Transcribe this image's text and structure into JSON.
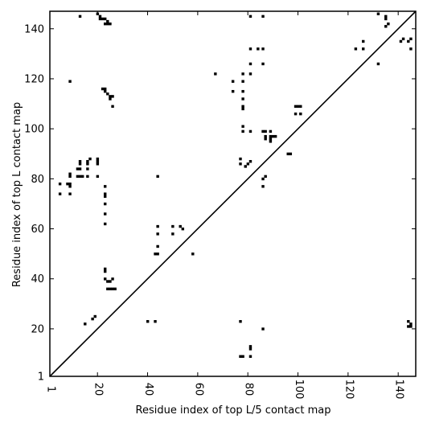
{
  "chart_data": {
    "type": "scatter",
    "title": "",
    "xlabel": "Residue index of top L/5 contact map",
    "ylabel": "Residue index of top L contact map",
    "xlim": [
      1,
      147
    ],
    "ylim": [
      1,
      147
    ],
    "xticks": [
      1,
      20,
      40,
      60,
      80,
      100,
      120,
      140
    ],
    "yticks": [
      1,
      20,
      40,
      60,
      80,
      100,
      120,
      140
    ],
    "xtick_labels": [
      "1",
      "20",
      "40",
      "60",
      "80",
      "100",
      "120",
      "140"
    ],
    "ytick_labels": [
      "1",
      "20",
      "40",
      "60",
      "80",
      "100",
      "120",
      "140"
    ],
    "diagonal": true,
    "grid": false,
    "marker_color": "#000000",
    "points": [
      [
        20,
        146
      ],
      [
        21,
        145
      ],
      [
        21,
        144
      ],
      [
        22,
        144
      ],
      [
        23,
        144
      ],
      [
        24,
        143
      ],
      [
        23,
        142
      ],
      [
        24,
        142
      ],
      [
        25,
        142
      ],
      [
        13,
        145
      ],
      [
        81,
        145
      ],
      [
        86,
        145
      ],
      [
        132,
        146
      ],
      [
        135,
        145
      ],
      [
        135,
        144
      ],
      [
        136,
        142
      ],
      [
        135,
        141
      ],
      [
        123,
        132
      ],
      [
        126,
        132
      ],
      [
        126,
        135
      ],
      [
        132,
        126
      ],
      [
        141,
        135
      ],
      [
        142,
        136
      ],
      [
        144,
        135
      ],
      [
        145,
        136
      ],
      [
        145,
        132
      ],
      [
        9,
        119
      ],
      [
        67,
        122
      ],
      [
        74,
        119
      ],
      [
        78,
        122
      ],
      [
        81,
        122
      ],
      [
        81,
        126
      ],
      [
        86,
        126
      ],
      [
        81,
        132
      ],
      [
        84,
        132
      ],
      [
        86,
        132
      ],
      [
        78,
        119
      ],
      [
        74,
        115
      ],
      [
        78,
        115
      ],
      [
        78,
        112
      ],
      [
        78,
        109
      ],
      [
        78,
        108
      ],
      [
        22,
        116
      ],
      [
        23,
        116
      ],
      [
        23,
        115
      ],
      [
        24,
        114
      ],
      [
        25,
        113
      ],
      [
        26,
        113
      ],
      [
        25,
        112
      ],
      [
        26,
        109
      ],
      [
        78,
        101
      ],
      [
        78,
        99
      ],
      [
        81,
        99
      ],
      [
        86,
        99
      ],
      [
        87,
        99
      ],
      [
        89,
        99
      ],
      [
        87,
        97
      ],
      [
        89,
        97
      ],
      [
        90,
        97
      ],
      [
        91,
        97
      ],
      [
        87,
        96
      ],
      [
        89,
        96
      ],
      [
        89,
        95
      ],
      [
        99,
        109
      ],
      [
        100,
        109
      ],
      [
        101,
        109
      ],
      [
        99,
        106
      ],
      [
        101,
        106
      ],
      [
        96,
        90
      ],
      [
        97,
        90
      ],
      [
        77,
        88
      ],
      [
        77,
        86
      ],
      [
        79,
        85
      ],
      [
        80,
        86
      ],
      [
        81,
        87
      ],
      [
        86,
        80
      ],
      [
        87,
        81
      ],
      [
        86,
        77
      ],
      [
        5,
        78
      ],
      [
        8,
        78
      ],
      [
        9,
        77
      ],
      [
        9,
        78
      ],
      [
        5,
        74
      ],
      [
        9,
        74
      ],
      [
        9,
        81
      ],
      [
        9,
        82
      ],
      [
        12,
        81
      ],
      [
        13,
        81
      ],
      [
        14,
        81
      ],
      [
        12,
        84
      ],
      [
        13,
        84
      ],
      [
        13,
        86
      ],
      [
        13,
        87
      ],
      [
        16,
        84
      ],
      [
        16,
        86
      ],
      [
        16,
        87
      ],
      [
        17,
        88
      ],
      [
        16,
        81
      ],
      [
        20,
        81
      ],
      [
        20,
        86
      ],
      [
        20,
        87
      ],
      [
        20,
        88
      ],
      [
        23,
        77
      ],
      [
        23,
        74
      ],
      [
        23,
        73
      ],
      [
        23,
        70
      ],
      [
        23,
        66
      ],
      [
        23,
        62
      ],
      [
        44,
        81
      ],
      [
        44,
        61
      ],
      [
        44,
        58
      ],
      [
        44,
        53
      ],
      [
        43,
        50
      ],
      [
        44,
        50
      ],
      [
        50,
        61
      ],
      [
        50,
        58
      ],
      [
        53,
        61
      ],
      [
        54,
        60
      ],
      [
        58,
        50
      ],
      [
        23,
        43
      ],
      [
        23,
        44
      ],
      [
        23,
        40
      ],
      [
        24,
        39
      ],
      [
        25,
        39
      ],
      [
        26,
        40
      ],
      [
        24,
        36
      ],
      [
        25,
        36
      ],
      [
        26,
        36
      ],
      [
        27,
        36
      ],
      [
        15,
        22
      ],
      [
        18,
        24
      ],
      [
        19,
        25
      ],
      [
        40,
        23
      ],
      [
        43,
        23
      ],
      [
        77,
        23
      ],
      [
        86,
        20
      ],
      [
        81,
        13
      ],
      [
        81,
        12
      ],
      [
        77,
        9
      ],
      [
        78,
        9
      ],
      [
        81,
        9
      ],
      [
        144,
        23
      ],
      [
        145,
        22
      ],
      [
        144,
        21
      ],
      [
        145,
        21
      ]
    ]
  }
}
